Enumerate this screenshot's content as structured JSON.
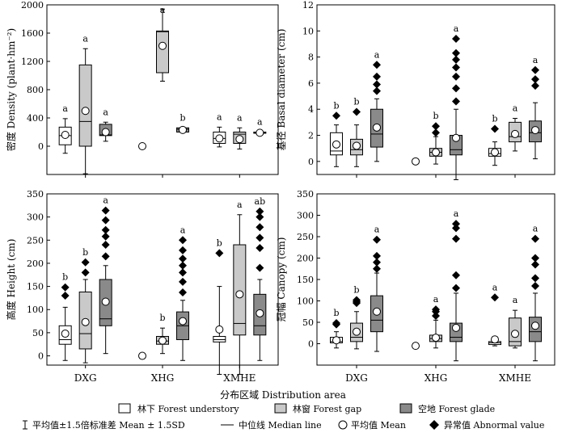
{
  "figure": {
    "xlabel": "分布区域 Distribution area",
    "categories": [
      "DXG",
      "XHG",
      "XMHE"
    ],
    "colors": {
      "understory": "#ffffff",
      "gap": "#c9c9c9",
      "glade": "#8a8a8a",
      "stroke": "#000000"
    },
    "legend": {
      "understory": "林下 Forest understory",
      "gap": "林窗 Forest gap",
      "glade": "空地 Forest glade",
      "whisker": "平均值±1.5倍标准差 Mean ± 1.5SD",
      "median": "中位线 Median line",
      "mean": "平均值 Mean",
      "outlier": "异常值 Abnormal value"
    }
  },
  "chart_data": [
    {
      "type": "box",
      "ylabel": "密度 Density (plant·hm⁻²)",
      "ylim": [
        -400,
        2000
      ],
      "yticks": [
        0,
        400,
        800,
        1200,
        1600,
        2000
      ],
      "categories": [
        "DXG",
        "XHG",
        "XMHE"
      ],
      "series": [
        {
          "name": "林下 Forest understory",
          "boxes": [
            {
              "q1": 20,
              "median": 150,
              "q3": 270,
              "whisker_low": -100,
              "whisker_high": 390,
              "mean": 160,
              "outliers": [],
              "letter": "a"
            },
            {
              "q1": null,
              "median": null,
              "q3": null,
              "whisker_low": null,
              "whisker_high": null,
              "mean": 0,
              "outliers": [],
              "letter": ""
            },
            {
              "q1": 40,
              "median": 110,
              "q3": 200,
              "whisker_low": -10,
              "whisker_high": 270,
              "mean": 110,
              "outliers": [],
              "letter": "a"
            }
          ]
        },
        {
          "name": "林窗 Forest gap",
          "boxes": [
            {
              "q1": 0,
              "median": 350,
              "q3": 1150,
              "whisker_low": -390,
              "whisker_high": 1380,
              "mean": 500,
              "outliers": [],
              "letter": "a"
            },
            {
              "q1": 1040,
              "median": 1620,
              "q3": 1630,
              "whisker_low": 920,
              "whisker_high": 1940,
              "mean": 1420,
              "outliers": [],
              "letter": "a"
            },
            {
              "q1": 40,
              "median": 170,
              "q3": 200,
              "whisker_low": -40,
              "whisker_high": 260,
              "mean": 100,
              "outliers": [],
              "letter": "a"
            }
          ]
        },
        {
          "name": "空地 Forest glade",
          "boxes": [
            {
              "q1": 150,
              "median": 160,
              "q3": 310,
              "whisker_low": 70,
              "whisker_high": 340,
              "mean": 200,
              "outliers": [],
              "letter": "a"
            },
            {
              "q1": 200,
              "median": 240,
              "q3": 260,
              "whisker_low": 200,
              "whisker_high": 260,
              "mean": 230,
              "outliers": [],
              "letter": "b"
            },
            {
              "q1": 190,
              "median": 195,
              "q3": 200,
              "whisker_low": 190,
              "whisker_high": 200,
              "mean": 190,
              "outliers": [],
              "letter": "a"
            }
          ]
        }
      ]
    },
    {
      "type": "box",
      "ylabel": "基径 Basal diameter (cm)",
      "ylim": [
        -1,
        12
      ],
      "yticks": [
        0,
        2,
        4,
        6,
        8,
        10,
        12
      ],
      "categories": [
        "DXG",
        "XHG",
        "XMHE"
      ],
      "series": [
        {
          "name": "林下 Forest understory",
          "boxes": [
            {
              "q1": 0.5,
              "median": 0.8,
              "q3": 2.2,
              "whisker_low": -0.4,
              "whisker_high": 2.8,
              "mean": 1.3,
              "outliers": [
                3.5
              ],
              "letter": "b"
            },
            {
              "q1": null,
              "median": null,
              "q3": null,
              "whisker_low": null,
              "whisker_high": null,
              "mean": 0,
              "outliers": [],
              "letter": ""
            },
            {
              "q1": 0.4,
              "median": 0.6,
              "q3": 1.0,
              "whisker_low": -0.3,
              "whisker_high": 1.5,
              "mean": 0.7,
              "outliers": [
                2.5
              ],
              "letter": "b"
            }
          ]
        },
        {
          "name": "林窗 Forest gap",
          "boxes": [
            {
              "q1": 0.5,
              "median": 0.9,
              "q3": 1.7,
              "whisker_low": -0.4,
              "whisker_high": 2.8,
              "mean": 1.2,
              "outliers": [
                3.8
              ],
              "letter": "b"
            },
            {
              "q1": 0.4,
              "median": 0.7,
              "q3": 1.0,
              "whisker_low": -0.2,
              "whisker_high": 1.9,
              "mean": 0.7,
              "outliers": [
                2.2,
                2.7
              ],
              "letter": "b"
            },
            {
              "q1": 1.5,
              "median": 1.9,
              "q3": 3.0,
              "whisker_low": 0.8,
              "whisker_high": 3.3,
              "mean": 2.1,
              "outliers": [],
              "letter": "a"
            }
          ]
        },
        {
          "name": "空地 Forest glade",
          "boxes": [
            {
              "q1": 1.1,
              "median": 2.1,
              "q3": 4.0,
              "whisker_low": 0.0,
              "whisker_high": 4.8,
              "mean": 2.6,
              "outliers": [
                5.4,
                5.9,
                6.5,
                7.4
              ],
              "letter": "a"
            },
            {
              "q1": 0.5,
              "median": 0.9,
              "q3": 2.0,
              "whisker_low": -1.4,
              "whisker_high": 4.0,
              "mean": 1.8,
              "outliers": [
                4.6,
                5.6,
                6.5,
                7.2,
                7.8,
                8.3,
                9.4
              ],
              "letter": "a"
            },
            {
              "q1": 1.5,
              "median": 2.2,
              "q3": 3.1,
              "whisker_low": 0.2,
              "whisker_high": 4.5,
              "mean": 2.4,
              "outliers": [
                5.8,
                6.3,
                7.0
              ],
              "letter": "a"
            }
          ]
        }
      ]
    },
    {
      "type": "box",
      "ylabel": "高度 Height (cm)",
      "ylim": [
        -20,
        350
      ],
      "yticks": [
        0,
        50,
        100,
        150,
        200,
        250,
        300,
        350
      ],
      "categories": [
        "DXG",
        "XHG",
        "XMHE"
      ],
      "series": [
        {
          "name": "林下 Forest understory",
          "boxes": [
            {
              "q1": 25,
              "median": 35,
              "q3": 65,
              "whisker_low": -10,
              "whisker_high": 105,
              "mean": 48,
              "outliers": [
                130,
                148
              ],
              "letter": "b"
            },
            {
              "q1": null,
              "median": null,
              "q3": null,
              "whisker_low": null,
              "whisker_high": null,
              "mean": 0,
              "outliers": [],
              "letter": ""
            },
            {
              "q1": 30,
              "median": 35,
              "q3": 42,
              "whisker_low": -40,
              "whisker_high": 150,
              "mean": 57,
              "outliers": [
                222
              ],
              "letter": "b"
            }
          ]
        },
        {
          "name": "林窗 Forest gap",
          "boxes": [
            {
              "q1": 15,
              "median": 48,
              "q3": 138,
              "whisker_low": -15,
              "whisker_high": 165,
              "mean": 73,
              "outliers": [
                180,
                202
              ],
              "letter": "b"
            },
            {
              "q1": 25,
              "median": 32,
              "q3": 42,
              "whisker_low": 5,
              "whisker_high": 60,
              "mean": 33,
              "outliers": [],
              "letter": "b"
            },
            {
              "q1": 45,
              "median": 70,
              "q3": 240,
              "whisker_low": -40,
              "whisker_high": 305,
              "mean": 133,
              "outliers": [],
              "letter": "a"
            }
          ]
        },
        {
          "name": "空地 Forest glade",
          "boxes": [
            {
              "q1": 65,
              "median": 80,
              "q3": 165,
              "whisker_low": 5,
              "whisker_high": 195,
              "mean": 117,
              "outliers": [
                215,
                240,
                258,
                272,
                293,
                314
              ],
              "letter": "a"
            },
            {
              "q1": 35,
              "median": 65,
              "q3": 95,
              "whisker_low": -10,
              "whisker_high": 120,
              "mean": 75,
              "outliers": [
                137,
                160,
                180,
                195,
                210,
                228,
                250
              ],
              "letter": "a"
            },
            {
              "q1": 45,
              "median": 65,
              "q3": 133,
              "whisker_low": -10,
              "whisker_high": 165,
              "mean": 92,
              "outliers": [
                190,
                233,
                255,
                278,
                300,
                312
              ],
              "letter": "ab"
            }
          ]
        }
      ]
    },
    {
      "type": "box",
      "ylabel": "冠幅 Canopy (cm)",
      "ylim": [
        -50,
        350
      ],
      "yticks": [
        0,
        50,
        100,
        150,
        200,
        250,
        300,
        350
      ],
      "categories": [
        "DXG",
        "XHG",
        "XMHE"
      ],
      "series": [
        {
          "name": "林下 Forest understory",
          "boxes": [
            {
              "q1": 2,
              "median": 5,
              "q3": 15,
              "whisker_low": -10,
              "whisker_high": 28,
              "mean": 8,
              "outliers": [
                45,
                48
              ],
              "letter": "b"
            },
            {
              "q1": null,
              "median": null,
              "q3": null,
              "whisker_low": null,
              "whisker_high": null,
              "mean": -5,
              "outliers": [],
              "letter": ""
            },
            {
              "q1": -2,
              "median": 2,
              "q3": 5,
              "whisker_low": -5,
              "whisker_high": 6,
              "mean": 10,
              "outliers": [
                108
              ],
              "letter": "a"
            }
          ]
        },
        {
          "name": "林窗 Forest gap",
          "boxes": [
            {
              "q1": 5,
              "median": 15,
              "q3": 48,
              "whisker_low": -12,
              "whisker_high": 75,
              "mean": 28,
              "outliers": [
                95,
                98,
                102
              ],
              "letter": "b"
            },
            {
              "q1": 5,
              "median": 12,
              "q3": 20,
              "whisker_low": -10,
              "whisker_high": 55,
              "mean": 14,
              "outliers": [
                65,
                75,
                80
              ],
              "letter": "a"
            },
            {
              "q1": -5,
              "median": 5,
              "q3": 60,
              "whisker_low": -10,
              "whisker_high": 78,
              "mean": 23,
              "outliers": [],
              "letter": "a"
            }
          ]
        },
        {
          "name": "空地 Forest glade",
          "boxes": [
            {
              "q1": 28,
              "median": 55,
              "q3": 112,
              "whisker_low": -18,
              "whisker_high": 165,
              "mean": 75,
              "outliers": [
                175,
                190,
                205,
                243
              ],
              "letter": "a"
            },
            {
              "q1": 5,
              "median": 15,
              "q3": 48,
              "whisker_low": -40,
              "whisker_high": 118,
              "mean": 37,
              "outliers": [
                130,
                160,
                245,
                270,
                280
              ],
              "letter": "a"
            },
            {
              "q1": 5,
              "median": 28,
              "q3": 62,
              "whisker_low": -40,
              "whisker_high": 118,
              "mean": 42,
              "outliers": [
                135,
                153,
                185,
                200,
                245
              ],
              "letter": "a"
            }
          ]
        }
      ]
    }
  ]
}
